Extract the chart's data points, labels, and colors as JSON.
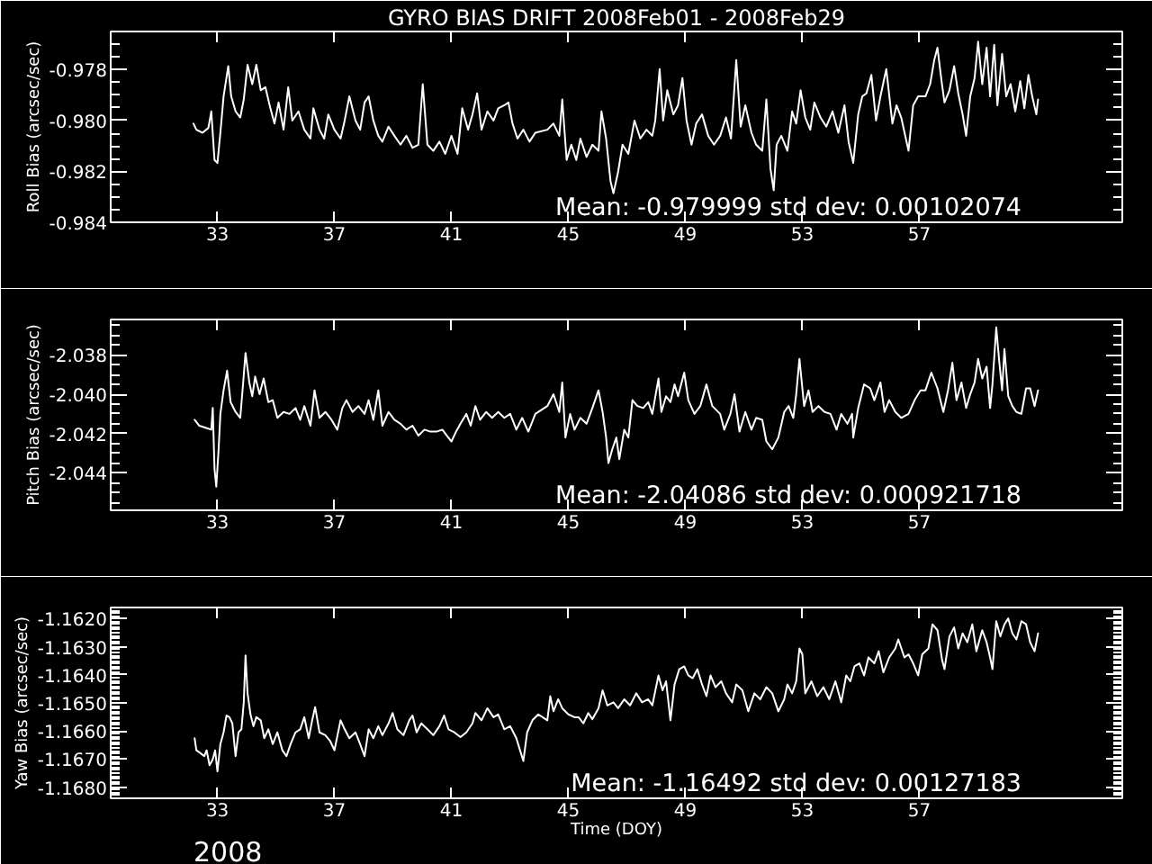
{
  "chart_data": [
    {
      "type": "line",
      "title": "GYRO BIAS DRIFT 2008Feb01 - 2008Feb29",
      "ylabel": "Roll Bias (arcsec/sec)",
      "xlim": [
        29.35,
        63.94
      ],
      "xticks": [
        33,
        37,
        41,
        45,
        49,
        53,
        57
      ],
      "ylim": [
        -0.984,
        -0.9765
      ],
      "yticks": [
        {
          "value": -0.984,
          "label": "-0.984"
        },
        {
          "value": -0.9835,
          "label": null
        },
        {
          "value": -0.983,
          "label": null
        },
        {
          "value": -0.9825,
          "label": null
        },
        {
          "value": -0.982,
          "label": "-0.982"
        },
        {
          "value": -0.9815,
          "label": null
        },
        {
          "value": -0.981,
          "label": null
        },
        {
          "value": -0.9805,
          "label": null
        },
        {
          "value": -0.98,
          "label": "-0.980"
        },
        {
          "value": -0.9795,
          "label": null
        },
        {
          "value": -0.979,
          "label": null
        },
        {
          "value": -0.9785,
          "label": null
        },
        {
          "value": -0.978,
          "label": "-0.978"
        },
        {
          "value": -0.9775,
          "label": null
        },
        {
          "value": -0.977,
          "label": null
        }
      ],
      "annotations": [
        "Mean: -0.979999 std dev: 0.00102074"
      ],
      "x": [
        32.18,
        32.28,
        32.49,
        32.69,
        32.79,
        32.9,
        33.0,
        33.1,
        33.21,
        33.37,
        33.47,
        33.62,
        33.78,
        33.9,
        34.03,
        34.19,
        34.33,
        34.48,
        34.64,
        34.81,
        34.95,
        35.09,
        35.26,
        35.42,
        35.56,
        35.77,
        35.97,
        36.18,
        36.28,
        36.49,
        36.65,
        36.79,
        37.0,
        37.21,
        37.35,
        37.51,
        37.72,
        37.88,
        38.03,
        38.17,
        38.33,
        38.5,
        38.64,
        38.85,
        39.05,
        39.26,
        39.46,
        39.67,
        39.87,
        40.02,
        40.18,
        40.38,
        40.59,
        40.79,
        41.0,
        41.21,
        41.37,
        41.57,
        41.72,
        41.88,
        42.03,
        42.23,
        42.44,
        42.6,
        42.81,
        42.95,
        43.09,
        43.26,
        43.46,
        43.67,
        43.87,
        44.28,
        44.49,
        44.69,
        44.79,
        44.94,
        45.1,
        45.27,
        45.41,
        45.62,
        45.82,
        46.03,
        46.13,
        46.29,
        46.44,
        46.54,
        46.7,
        46.85,
        47.05,
        47.26,
        47.46,
        47.67,
        47.87,
        47.97,
        48.12,
        48.24,
        48.38,
        48.59,
        48.75,
        48.9,
        49.04,
        49.21,
        49.37,
        49.57,
        49.78,
        49.98,
        50.19,
        50.39,
        50.56,
        50.74,
        50.89,
        51.05,
        51.26,
        51.42,
        51.63,
        51.77,
        51.91,
        52.02,
        52.12,
        52.28,
        52.49,
        52.65,
        52.79,
        52.94,
        53.1,
        53.27,
        53.41,
        53.62,
        53.82,
        54.03,
        54.23,
        54.44,
        54.58,
        54.74,
        54.91,
        55.05,
        55.19,
        55.36,
        55.52,
        55.67,
        55.87,
        56.08,
        56.22,
        56.38,
        56.63,
        56.79,
        56.96,
        57.21,
        57.37,
        57.51,
        57.62,
        57.76,
        57.86,
        58.03,
        58.19,
        58.33,
        58.48,
        58.6,
        58.74,
        58.89,
        59.01,
        59.15,
        59.3,
        59.42,
        59.56,
        59.67,
        59.83,
        59.97,
        60.12,
        60.28,
        60.45,
        60.59,
        60.73,
        60.86,
        61.0,
        61.06
      ],
      "series": [
        {
          "color": "#ffffff",
          "values": [
            -0.98012,
            -0.98036,
            -0.98048,
            -0.98029,
            -0.97964,
            -0.98155,
            -0.98167,
            -0.98048,
            -0.97905,
            -0.97786,
            -0.97905,
            -0.97964,
            -0.97988,
            -0.97917,
            -0.97781,
            -0.97857,
            -0.97781,
            -0.97881,
            -0.97869,
            -0.97952,
            -0.98012,
            -0.97929,
            -0.98036,
            -0.97869,
            -0.98,
            -0.97964,
            -0.98036,
            -0.98071,
            -0.97952,
            -0.98036,
            -0.98071,
            -0.97976,
            -0.98036,
            -0.98071,
            -0.98,
            -0.97905,
            -0.98,
            -0.98036,
            -0.97929,
            -0.97905,
            -0.98,
            -0.9806,
            -0.98083,
            -0.98024,
            -0.9806,
            -0.98095,
            -0.9806,
            -0.98107,
            -0.98095,
            -0.97857,
            -0.98095,
            -0.98119,
            -0.98083,
            -0.98131,
            -0.9806,
            -0.98131,
            -0.97952,
            -0.98036,
            -0.97976,
            -0.97893,
            -0.98036,
            -0.97964,
            -0.98,
            -0.97952,
            -0.9794,
            -0.97929,
            -0.98012,
            -0.98071,
            -0.98036,
            -0.98083,
            -0.98048,
            -0.98036,
            -0.98012,
            -0.9806,
            -0.97917,
            -0.98155,
            -0.98095,
            -0.98155,
            -0.98071,
            -0.98143,
            -0.98095,
            -0.98119,
            -0.97964,
            -0.98071,
            -0.98238,
            -0.98286,
            -0.98202,
            -0.98095,
            -0.98131,
            -0.98,
            -0.98071,
            -0.98036,
            -0.9806,
            -0.98,
            -0.97798,
            -0.98,
            -0.97881,
            -0.97976,
            -0.9794,
            -0.97833,
            -0.98,
            -0.98095,
            -0.98012,
            -0.97976,
            -0.9806,
            -0.98095,
            -0.9806,
            -0.97988,
            -0.98071,
            -0.97762,
            -0.98024,
            -0.9794,
            -0.98048,
            -0.98095,
            -0.98119,
            -0.97917,
            -0.9819,
            -0.98274,
            -0.98095,
            -0.9806,
            -0.98119,
            -0.97964,
            -0.98012,
            -0.97881,
            -0.97988,
            -0.98036,
            -0.97929,
            -0.97988,
            -0.98024,
            -0.97964,
            -0.98048,
            -0.9794,
            -0.98083,
            -0.98167,
            -0.97976,
            -0.97905,
            -0.97893,
            -0.97821,
            -0.98,
            -0.97905,
            -0.97798,
            -0.98012,
            -0.9794,
            -0.97988,
            -0.98119,
            -0.9794,
            -0.97905,
            -0.97905,
            -0.97857,
            -0.97762,
            -0.97714,
            -0.97845,
            -0.97929,
            -0.97881,
            -0.97786,
            -0.97893,
            -0.97976,
            -0.9806,
            -0.97905,
            -0.97833,
            -0.9769,
            -0.97857,
            -0.97714,
            -0.97905,
            -0.97702,
            -0.9794,
            -0.97738,
            -0.97905,
            -0.97857,
            -0.97964,
            -0.97845,
            -0.97952,
            -0.97821,
            -0.97905,
            -0.97976,
            -0.97917
          ]
        }
      ]
    },
    {
      "type": "line",
      "ylabel": "Pitch Bias (arcsec/sec)",
      "xlim": [
        29.35,
        63.94
      ],
      "xticks": [
        33,
        37,
        41,
        45,
        49,
        53,
        57
      ],
      "ylim": [
        -2.0459,
        -2.0362
      ],
      "yticks": [
        {
          "value": -2.0455,
          "label": null
        },
        {
          "value": -2.045,
          "label": null
        },
        {
          "value": -2.0445,
          "label": null
        },
        {
          "value": -2.044,
          "label": "-2.044"
        },
        {
          "value": -2.0435,
          "label": null
        },
        {
          "value": -2.043,
          "label": null
        },
        {
          "value": -2.0425,
          "label": null
        },
        {
          "value": -2.042,
          "label": "-2.042"
        },
        {
          "value": -2.0415,
          "label": null
        },
        {
          "value": -2.041,
          "label": null
        },
        {
          "value": -2.0405,
          "label": null
        },
        {
          "value": -2.04,
          "label": "-2.040"
        },
        {
          "value": -2.0395,
          "label": null
        },
        {
          "value": -2.039,
          "label": null
        },
        {
          "value": -2.0385,
          "label": null
        },
        {
          "value": -2.038,
          "label": "-2.038"
        },
        {
          "value": -2.0375,
          "label": null
        },
        {
          "value": -2.037,
          "label": null
        },
        {
          "value": -2.0365,
          "label": null
        }
      ],
      "annotations": [
        "Mean: -2.04086 std dev: 0.000921718"
      ],
      "x": [
        32.22,
        32.38,
        32.59,
        32.79,
        32.84,
        32.9,
        32.96,
        33.04,
        33.1,
        33.21,
        33.33,
        33.45,
        33.62,
        33.78,
        33.88,
        33.96,
        34.09,
        34.19,
        34.29,
        34.44,
        34.58,
        34.74,
        34.89,
        35.05,
        35.26,
        35.46,
        35.67,
        35.83,
        35.97,
        36.18,
        36.32,
        36.49,
        36.69,
        36.9,
        37.1,
        37.27,
        37.41,
        37.62,
        37.82,
        38.03,
        38.17,
        38.33,
        38.5,
        38.64,
        38.85,
        39.05,
        39.26,
        39.46,
        39.67,
        39.87,
        40.08,
        40.28,
        40.49,
        40.69,
        40.84,
        41.0,
        41.16,
        41.31,
        41.51,
        41.66,
        41.82,
        41.98,
        42.19,
        42.39,
        42.6,
        42.81,
        43.01,
        43.22,
        43.42,
        43.63,
        43.87,
        44.28,
        44.49,
        44.69,
        44.79,
        44.9,
        45.06,
        45.21,
        45.41,
        45.62,
        45.82,
        46.03,
        46.17,
        46.29,
        46.37,
        46.5,
        46.64,
        46.74,
        46.91,
        47.05,
        47.19,
        47.36,
        47.56,
        47.73,
        47.87,
        48.08,
        48.18,
        48.34,
        48.49,
        48.63,
        48.75,
        48.96,
        49.1,
        49.31,
        49.51,
        49.72,
        49.92,
        50.19,
        50.33,
        50.54,
        50.68,
        50.85,
        51.05,
        51.26,
        51.42,
        51.63,
        51.77,
        51.97,
        52.18,
        52.38,
        52.53,
        52.69,
        52.79,
        52.9,
        53.06,
        53.21,
        53.35,
        53.55,
        53.76,
        53.96,
        54.17,
        54.33,
        54.54,
        54.7,
        54.74,
        54.91,
        55.11,
        55.32,
        55.46,
        55.67,
        55.81,
        55.97,
        56.18,
        56.38,
        56.63,
        56.84,
        57.04,
        57.21,
        57.41,
        57.62,
        57.82,
        57.98,
        58.13,
        58.27,
        58.44,
        58.6,
        58.74,
        58.89,
        59.01,
        59.15,
        59.3,
        59.42,
        59.5,
        59.63,
        59.73,
        59.83,
        59.91,
        60.04,
        60.18,
        60.32,
        60.49,
        60.65,
        60.79,
        60.94,
        61.06
      ],
      "series": [
        {
          "color": "#ffffff",
          "values": [
            -2.0413,
            -2.0416,
            -2.0417,
            -2.0418,
            -2.0407,
            -2.0438,
            -2.0447,
            -2.0428,
            -2.041,
            -2.0398,
            -2.0388,
            -2.0404,
            -2.0409,
            -2.0412,
            -2.0394,
            -2.0379,
            -2.0394,
            -2.0401,
            -2.0391,
            -2.04,
            -2.0392,
            -2.0404,
            -2.0403,
            -2.0412,
            -2.0409,
            -2.041,
            -2.0407,
            -2.0413,
            -2.0406,
            -2.0416,
            -2.0398,
            -2.0412,
            -2.0409,
            -2.0413,
            -2.0418,
            -2.0407,
            -2.0403,
            -2.0409,
            -2.0406,
            -2.041,
            -2.0403,
            -2.0413,
            -2.0398,
            -2.0416,
            -2.0409,
            -2.0413,
            -2.0415,
            -2.0418,
            -2.0416,
            -2.0421,
            -2.0418,
            -2.0419,
            -2.0419,
            -2.0418,
            -2.0421,
            -2.0424,
            -2.0419,
            -2.0415,
            -2.041,
            -2.0416,
            -2.0406,
            -2.0413,
            -2.0409,
            -2.0412,
            -2.0409,
            -2.0412,
            -2.041,
            -2.0418,
            -2.0412,
            -2.0419,
            -2.041,
            -2.0406,
            -2.04,
            -2.0409,
            -2.0394,
            -2.0422,
            -2.041,
            -2.0418,
            -2.0412,
            -2.0415,
            -2.0407,
            -2.0398,
            -2.0409,
            -2.0422,
            -2.0435,
            -2.0428,
            -2.0422,
            -2.0433,
            -2.0418,
            -2.0422,
            -2.0403,
            -2.0406,
            -2.0407,
            -2.0404,
            -2.041,
            -2.0392,
            -2.0409,
            -2.0401,
            -2.0404,
            -2.0395,
            -2.0401,
            -2.0389,
            -2.0403,
            -2.041,
            -2.0406,
            -2.0395,
            -2.0406,
            -2.041,
            -2.0418,
            -2.041,
            -2.04,
            -2.0419,
            -2.0409,
            -2.0418,
            -2.0412,
            -2.0413,
            -2.0424,
            -2.0428,
            -2.0422,
            -2.0409,
            -2.0406,
            -2.0412,
            -2.04,
            -2.0382,
            -2.0406,
            -2.0398,
            -2.0409,
            -2.0406,
            -2.0409,
            -2.041,
            -2.0418,
            -2.041,
            -2.0415,
            -2.041,
            -2.0422,
            -2.0407,
            -2.0395,
            -2.0397,
            -2.0403,
            -2.0394,
            -2.0409,
            -2.0403,
            -2.0409,
            -2.0412,
            -2.041,
            -2.0403,
            -2.0398,
            -2.0398,
            -2.0389,
            -2.0397,
            -2.0409,
            -2.0398,
            -2.0384,
            -2.0403,
            -2.0394,
            -2.0407,
            -2.04,
            -2.0394,
            -2.0382,
            -2.0392,
            -2.0386,
            -2.0407,
            -2.0395,
            -2.0366,
            -2.0383,
            -2.0398,
            -2.0377,
            -2.0401,
            -2.0406,
            -2.0409,
            -2.041,
            -2.0397,
            -2.0397,
            -2.0406,
            -2.0398
          ]
        }
      ]
    },
    {
      "type": "line",
      "ylabel": "Yaw Bias (arcsec/sec)",
      "xlabel": "Time (DOY)",
      "xlim": [
        29.35,
        63.94
      ],
      "xticks": [
        33,
        37,
        41,
        45,
        49,
        53,
        57
      ],
      "ylim": [
        -1.1684,
        -1.1616
      ],
      "yticks": [
        {
          "value": -1.1683,
          "label": null
        },
        {
          "value": -1.1682,
          "label": null
        },
        {
          "value": -1.1681,
          "label": null
        },
        {
          "value": -1.168,
          "label": "-1.1680"
        },
        {
          "value": -1.1679,
          "label": null
        },
        {
          "value": -1.1678,
          "label": null
        },
        {
          "value": -1.1677,
          "label": null
        },
        {
          "value": -1.1676,
          "label": null
        },
        {
          "value": -1.1675,
          "label": null
        },
        {
          "value": -1.1674,
          "label": null
        },
        {
          "value": -1.1673,
          "label": null
        },
        {
          "value": -1.1672,
          "label": null
        },
        {
          "value": -1.1671,
          "label": null
        },
        {
          "value": -1.167,
          "label": "-1.1670"
        },
        {
          "value": -1.1669,
          "label": null
        },
        {
          "value": -1.1668,
          "label": null
        },
        {
          "value": -1.1667,
          "label": null
        },
        {
          "value": -1.1666,
          "label": null
        },
        {
          "value": -1.1665,
          "label": null
        },
        {
          "value": -1.1664,
          "label": null
        },
        {
          "value": -1.1663,
          "label": null
        },
        {
          "value": -1.1662,
          "label": null
        },
        {
          "value": -1.1661,
          "label": null
        },
        {
          "value": -1.166,
          "label": "-1.1660"
        },
        {
          "value": -1.1659,
          "label": null
        },
        {
          "value": -1.1658,
          "label": null
        },
        {
          "value": -1.1657,
          "label": null
        },
        {
          "value": -1.1656,
          "label": null
        },
        {
          "value": -1.1655,
          "label": null
        },
        {
          "value": -1.1654,
          "label": null
        },
        {
          "value": -1.1653,
          "label": null
        },
        {
          "value": -1.1652,
          "label": null
        },
        {
          "value": -1.1651,
          "label": null
        },
        {
          "value": -1.165,
          "label": "-1.1650"
        },
        {
          "value": -1.1649,
          "label": null
        },
        {
          "value": -1.1648,
          "label": null
        },
        {
          "value": -1.1647,
          "label": null
        },
        {
          "value": -1.1646,
          "label": null
        },
        {
          "value": -1.1645,
          "label": null
        },
        {
          "value": -1.1644,
          "label": null
        },
        {
          "value": -1.1643,
          "label": null
        },
        {
          "value": -1.1642,
          "label": null
        },
        {
          "value": -1.1641,
          "label": null
        },
        {
          "value": -1.164,
          "label": "-1.1640"
        },
        {
          "value": -1.1639,
          "label": null
        },
        {
          "value": -1.1638,
          "label": null
        },
        {
          "value": -1.1637,
          "label": null
        },
        {
          "value": -1.1636,
          "label": null
        },
        {
          "value": -1.1635,
          "label": null
        },
        {
          "value": -1.1634,
          "label": null
        },
        {
          "value": -1.1633,
          "label": null
        },
        {
          "value": -1.1632,
          "label": null
        },
        {
          "value": -1.1631,
          "label": null
        },
        {
          "value": -1.163,
          "label": "-1.1630"
        },
        {
          "value": -1.1629,
          "label": null
        },
        {
          "value": -1.1628,
          "label": null
        },
        {
          "value": -1.1627,
          "label": null
        },
        {
          "value": -1.1626,
          "label": null
        },
        {
          "value": -1.1625,
          "label": null
        },
        {
          "value": -1.1624,
          "label": null
        },
        {
          "value": -1.1623,
          "label": null
        },
        {
          "value": -1.1622,
          "label": null
        },
        {
          "value": -1.1621,
          "label": null
        },
        {
          "value": -1.162,
          "label": "-1.1620"
        },
        {
          "value": -1.1619,
          "label": null
        },
        {
          "value": -1.1618,
          "label": null
        },
        {
          "value": -1.1617,
          "label": null
        }
      ],
      "annotations": [
        "Mean: -1.16492 std dev: 0.00127183",
        "2008"
      ],
      "x": [
        32.22,
        32.28,
        32.43,
        32.55,
        32.63,
        32.73,
        32.84,
        32.92,
        33.0,
        33.1,
        33.21,
        33.31,
        33.41,
        33.51,
        33.62,
        33.72,
        33.82,
        33.9,
        33.96,
        34.03,
        34.13,
        34.23,
        34.33,
        34.48,
        34.6,
        34.74,
        34.89,
        35.05,
        35.22,
        35.36,
        35.5,
        35.67,
        35.83,
        35.97,
        36.12,
        36.24,
        36.34,
        36.49,
        36.69,
        36.86,
        37.0,
        37.21,
        37.35,
        37.51,
        37.72,
        37.88,
        38.03,
        38.17,
        38.33,
        38.5,
        38.64,
        38.85,
        38.99,
        39.15,
        39.36,
        39.56,
        39.67,
        39.81,
        39.97,
        40.18,
        40.38,
        40.59,
        40.75,
        40.9,
        41.1,
        41.31,
        41.51,
        41.72,
        41.82,
        42.03,
        42.23,
        42.44,
        42.6,
        42.81,
        43.01,
        43.22,
        43.38,
        43.46,
        43.59,
        43.77,
        43.97,
        44.28,
        44.38,
        44.49,
        44.65,
        44.79,
        45.0,
        45.21,
        45.35,
        45.51,
        45.68,
        45.82,
        46.03,
        46.17,
        46.33,
        46.54,
        46.7,
        46.91,
        47.11,
        47.32,
        47.52,
        47.73,
        47.87,
        48.08,
        48.22,
        48.34,
        48.49,
        48.63,
        48.79,
        48.96,
        49.1,
        49.25,
        49.41,
        49.57,
        49.72,
        49.86,
        50.03,
        50.23,
        50.39,
        50.6,
        50.74,
        50.95,
        51.15,
        51.36,
        51.56,
        51.77,
        51.97,
        52.18,
        52.38,
        52.49,
        52.65,
        52.79,
        52.9,
        53.0,
        53.1,
        53.31,
        53.51,
        53.72,
        53.92,
        54.13,
        54.33,
        54.5,
        54.64,
        54.78,
        54.95,
        55.11,
        55.26,
        55.46,
        55.61,
        55.77,
        55.97,
        56.18,
        56.28,
        56.49,
        56.63,
        56.79,
        56.96,
        57.1,
        57.31,
        57.45,
        57.62,
        57.78,
        57.86,
        58.03,
        58.19,
        58.33,
        58.48,
        58.64,
        58.81,
        58.95,
        59.15,
        59.3,
        59.42,
        59.5,
        59.63,
        59.77,
        59.91,
        60.04,
        60.18,
        60.32,
        60.49,
        60.65,
        60.79,
        60.94,
        61.06
      ],
      "series": [
        {
          "color": "#ffffff",
          "values": [
            -1.16626,
            -1.16669,
            -1.1668,
            -1.1669,
            -1.16669,
            -1.16722,
            -1.16701,
            -1.16669,
            -1.16744,
            -1.16647,
            -1.16605,
            -1.16545,
            -1.16551,
            -1.16573,
            -1.1669,
            -1.16605,
            -1.16594,
            -1.16498,
            -1.16331,
            -1.16466,
            -1.16541,
            -1.16583,
            -1.16551,
            -1.16562,
            -1.16626,
            -1.16594,
            -1.16647,
            -1.16605,
            -1.16669,
            -1.1669,
            -1.16647,
            -1.16605,
            -1.16594,
            -1.16551,
            -1.16626,
            -1.16562,
            -1.16515,
            -1.16605,
            -1.16615,
            -1.16637,
            -1.16669,
            -1.16562,
            -1.16594,
            -1.16626,
            -1.16605,
            -1.16647,
            -1.1669,
            -1.16594,
            -1.16626,
            -1.16583,
            -1.16615,
            -1.16573,
            -1.16536,
            -1.16594,
            -1.16615,
            -1.16562,
            -1.16545,
            -1.16605,
            -1.16573,
            -1.16594,
            -1.16615,
            -1.16583,
            -1.16545,
            -1.16594,
            -1.16605,
            -1.16622,
            -1.16605,
            -1.16573,
            -1.16536,
            -1.16562,
            -1.16519,
            -1.16551,
            -1.16541,
            -1.16594,
            -1.16583,
            -1.16626,
            -1.1668,
            -1.16707,
            -1.16605,
            -1.16562,
            -1.16541,
            -1.16562,
            -1.16476,
            -1.1653,
            -1.16487,
            -1.16519,
            -1.16541,
            -1.16551,
            -1.16551,
            -1.16573,
            -1.16536,
            -1.16558,
            -1.16519,
            -1.16455,
            -1.16509,
            -1.16498,
            -1.16519,
            -1.16487,
            -1.16509,
            -1.16466,
            -1.16498,
            -1.16487,
            -1.16509,
            -1.16402,
            -1.16455,
            -1.16423,
            -1.16562,
            -1.16434,
            -1.1638,
            -1.1637,
            -1.16402,
            -1.16412,
            -1.1638,
            -1.16434,
            -1.16476,
            -1.16402,
            -1.16444,
            -1.16423,
            -1.16466,
            -1.16498,
            -1.16434,
            -1.16455,
            -1.1653,
            -1.16466,
            -1.16487,
            -1.16444,
            -1.16466,
            -1.1653,
            -1.16487,
            -1.16434,
            -1.16466,
            -1.16423,
            -1.16306,
            -1.16327,
            -1.16466,
            -1.16423,
            -1.16476,
            -1.16444,
            -1.16487,
            -1.16423,
            -1.16498,
            -1.16402,
            -1.16423,
            -1.1637,
            -1.16359,
            -1.16402,
            -1.16338,
            -1.16359,
            -1.16316,
            -1.16391,
            -1.16338,
            -1.16306,
            -1.16274,
            -1.16338,
            -1.16327,
            -1.16359,
            -1.16402,
            -1.16327,
            -1.16306,
            -1.1622,
            -1.16241,
            -1.16348,
            -1.1638,
            -1.16263,
            -1.16231,
            -1.16306,
            -1.16252,
            -1.16284,
            -1.1622,
            -1.16316,
            -1.16241,
            -1.16284,
            -1.16338,
            -1.1638,
            -1.16209,
            -1.16263,
            -1.1622,
            -1.16199,
            -1.16252,
            -1.16274,
            -1.16209,
            -1.1622,
            -1.16284,
            -1.16316,
            -1.16252
          ]
        }
      ]
    }
  ]
}
